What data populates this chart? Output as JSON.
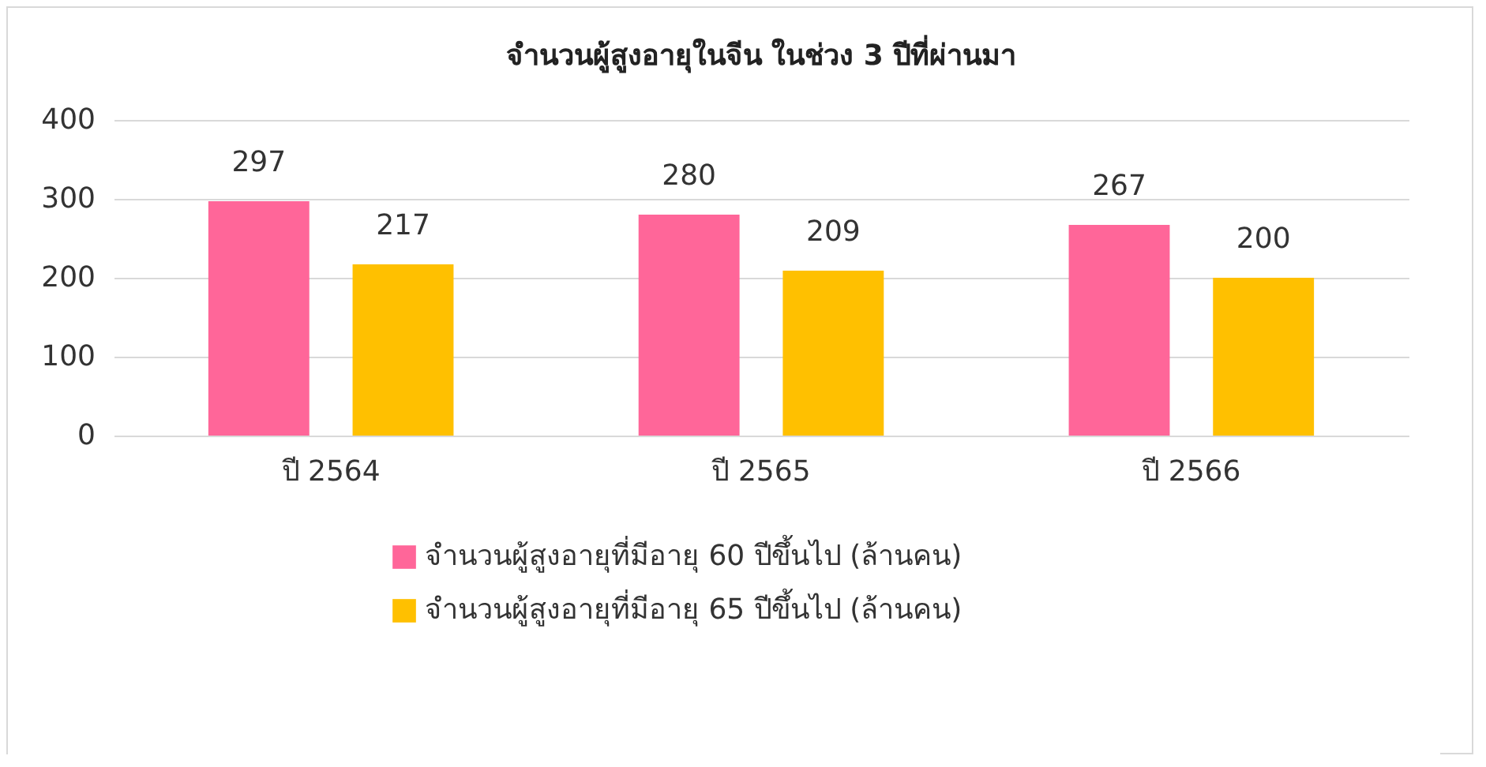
{
  "chart_data": {
    "type": "bar",
    "title": "จำนวนผู้สูงอายุในจีน ในช่วง 3 ปีที่ผ่านมา",
    "categories": [
      "ปี 2564",
      "ปี 2565",
      "ปี 2566"
    ],
    "series": [
      {
        "name": "จำนวนผู้สูงอายุที่มีอายุ 60 ปีขึ้นไป (ล้านคน)",
        "color": "#ff6699",
        "values": [
          297,
          280,
          267
        ]
      },
      {
        "name": "จำนวนผู้สูงอายุที่มีอายุ 65 ปีขึ้นไป (ล้านคน)",
        "color": "#ffc000",
        "values": [
          217,
          209,
          200
        ]
      }
    ],
    "ylim": [
      0,
      400
    ],
    "yticks": [
      0,
      100,
      200,
      300,
      400
    ],
    "grid": "y",
    "legend": "bottom",
    "data_labels": true
  }
}
